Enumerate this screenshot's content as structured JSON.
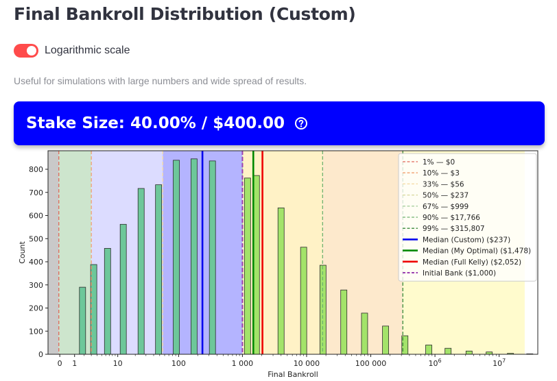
{
  "page": {
    "title": "Final Bankroll Distribution (Custom)",
    "toggle_label": "Logarithmic scale",
    "toggle_on": true,
    "caption": "Useful for simulations with large numbers and wide spread of results.",
    "banner_text": "Stake Size: 40.00% / $400.00",
    "banner_color": "#0000ff",
    "accent_color": "#ff4b4b",
    "help_icon": "question-circle-icon"
  },
  "chart_data": {
    "type": "bar",
    "xlabel": "Final Bankroll",
    "ylabel": "Count",
    "xscale": "symlog",
    "ylim": [
      0,
      880
    ],
    "xlim": [
      -0.75,
      40000000.0
    ],
    "x_ticks": [
      {
        "value": 0,
        "label": "0"
      },
      {
        "value": 1,
        "label": "1"
      },
      {
        "value": 10,
        "label": "10"
      },
      {
        "value": 100,
        "label": "100"
      },
      {
        "value": 1000,
        "label": "1 000"
      },
      {
        "value": 10000,
        "label": "10 000"
      },
      {
        "value": 100000,
        "label": "100 000"
      },
      {
        "value": 1000000,
        "label": "10",
        "sup": "6"
      },
      {
        "value": 10000000,
        "label": "10",
        "sup": "7"
      }
    ],
    "y_ticks": [
      0,
      100,
      200,
      300,
      400,
      500,
      600,
      700,
      800
    ],
    "bins": [
      {
        "x": 1.8,
        "count": 290
      },
      {
        "x": 3.4,
        "count": 388
      },
      {
        "x": 6.5,
        "count": 458
      },
      {
        "x": 12.5,
        "count": 562
      },
      {
        "x": 25,
        "count": 717
      },
      {
        "x": 48,
        "count": 733
      },
      {
        "x": 92,
        "count": 839
      },
      {
        "x": 175,
        "count": 845
      },
      {
        "x": 340,
        "count": 836
      },
      {
        "x": 1200,
        "count": 762
      },
      {
        "x": 1650,
        "count": 773
      },
      {
        "x": 4000,
        "count": 633
      },
      {
        "x": 9000,
        "count": 463
      },
      {
        "x": 18000,
        "count": 385
      },
      {
        "x": 38000,
        "count": 278
      },
      {
        "x": 80000,
        "count": 178
      },
      {
        "x": 170000,
        "count": 122
      },
      {
        "x": 340000,
        "count": 80
      },
      {
        "x": 800000,
        "count": 40
      },
      {
        "x": 1600000,
        "count": 26
      },
      {
        "x": 3400000,
        "count": 14
      },
      {
        "x": 7000000,
        "count": 10
      },
      {
        "x": 15000000,
        "count": 4
      },
      {
        "x": 30000000,
        "count": 2
      }
    ],
    "regions": [
      {
        "from": -0.75,
        "to": -0.05,
        "color": "#c9c9c9"
      },
      {
        "from": -0.05,
        "to": 3,
        "color": "#cde5cd"
      },
      {
        "from": 3,
        "to": 56,
        "color": "#dcdcff"
      },
      {
        "from": 56,
        "to": 999,
        "color": "#b4b4ff"
      },
      {
        "from": 999,
        "to": 17766,
        "color": "#fff2c6"
      },
      {
        "from": 17766,
        "to": 315807,
        "color": "#fde9cc"
      },
      {
        "from": 315807,
        "to": 25000000,
        "color": "#fffbcd"
      }
    ],
    "percentile_lines": [
      {
        "label": "1% — $0",
        "value": -0.05,
        "color": "#e0685a"
      },
      {
        "label": "10% — $3",
        "value": 3,
        "color": "#f0a070"
      },
      {
        "label": "33% — $56",
        "value": 56,
        "color": "#f5d9a0"
      },
      {
        "label": "50% — $237",
        "value": 237,
        "color": "#d7d79a"
      },
      {
        "label": "67% — $999",
        "value": 999,
        "color": "#a8d0a0"
      },
      {
        "label": "90% — $17,766",
        "value": 17766,
        "color": "#6fb26f"
      },
      {
        "label": "99% — $315,807",
        "value": 315807,
        "color": "#3a8a3a"
      }
    ],
    "median_lines": [
      {
        "label": "Median (Custom) ($237)",
        "value": 237,
        "color": "#0000ee"
      },
      {
        "label": "Median (My Optimal) ($1,478)",
        "value": 1478,
        "color": "#008800"
      },
      {
        "label": "Median (Full Kelly) ($2,052)",
        "value": 2052,
        "color": "#ee0000"
      }
    ],
    "initial_bank": {
      "label": "Initial Bank ($1,000)",
      "value": 1000,
      "color": "#9b40b0"
    },
    "legend_position": "top-right",
    "bar_colors": {
      "low": "#6dc79a",
      "high": "#a3e36a",
      "threshold": 1000
    }
  }
}
